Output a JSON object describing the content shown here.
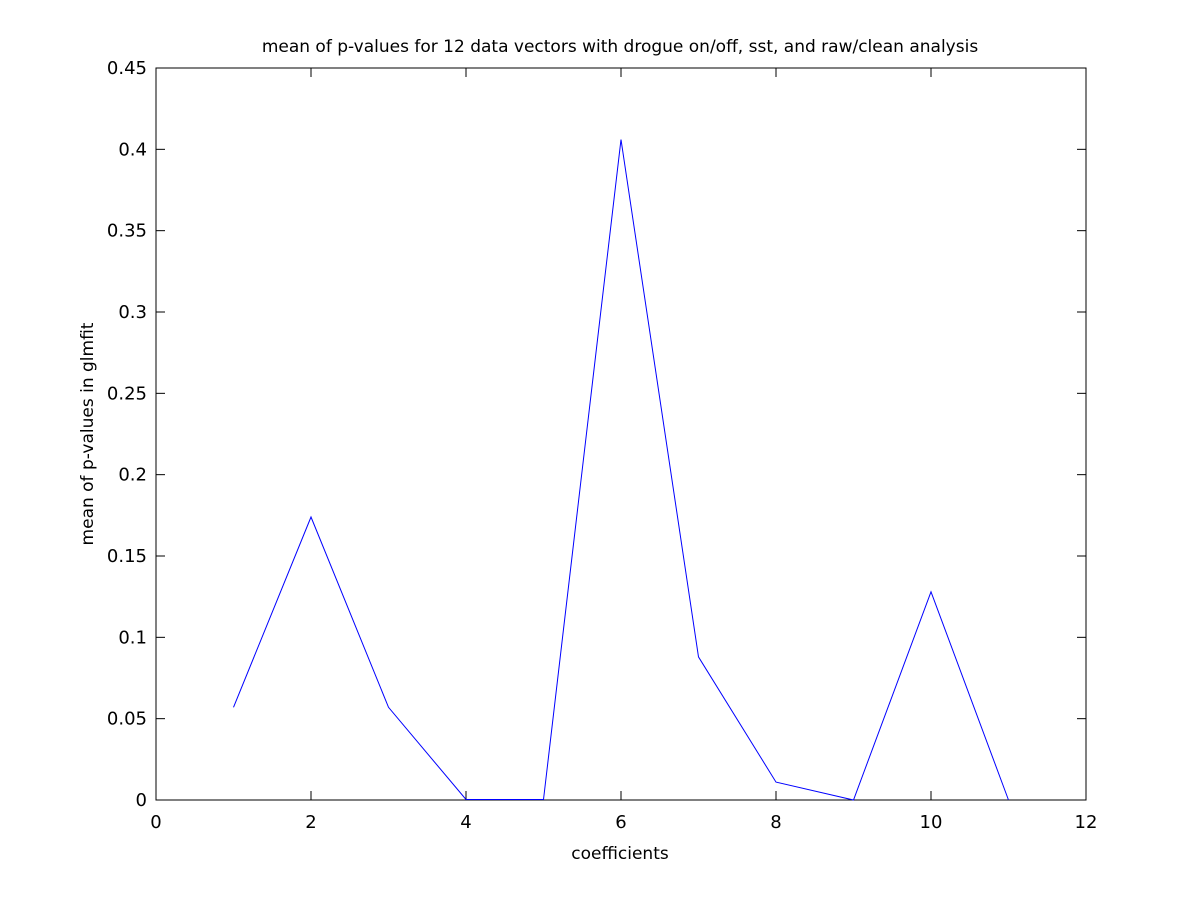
{
  "chart_data": {
    "type": "line",
    "title": "mean of p-values for 12 data vectors with drogue on/off, sst, and raw/clean analysis",
    "xlabel": "coefficients",
    "ylabel": "mean of p-values in glmfit",
    "xlim": [
      0,
      12
    ],
    "ylim": [
      0,
      0.45
    ],
    "xticks": [
      0,
      2,
      4,
      6,
      8,
      10,
      12
    ],
    "yticks": [
      0,
      0.05,
      0.1,
      0.15,
      0.2,
      0.25,
      0.3,
      0.35,
      0.4,
      0.45
    ],
    "xtick_labels": [
      "0",
      "2",
      "4",
      "6",
      "8",
      "10",
      "12"
    ],
    "ytick_labels": [
      "0",
      "0.05",
      "0.1",
      "0.15",
      "0.2",
      "0.25",
      "0.3",
      "0.35",
      "0.4",
      "0.45"
    ],
    "grid": false,
    "legend": "none",
    "series": [
      {
        "color": "#0000ff",
        "x": [
          1,
          2,
          3,
          4,
          5,
          6,
          7,
          8,
          9,
          10,
          11
        ],
        "y": [
          0.057,
          0.174,
          0.057,
          0.0003,
          0.0003,
          0.406,
          0.088,
          0.011,
          0.0,
          0.128,
          0.0
        ]
      }
    ]
  }
}
